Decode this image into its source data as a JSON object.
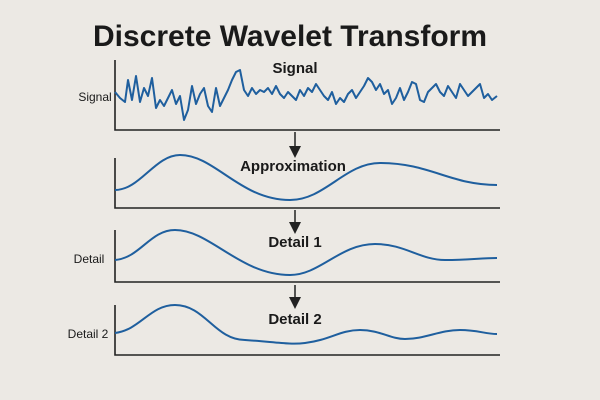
{
  "title": "Discrete Wavelet Transform",
  "panels": [
    {
      "title": "Signal",
      "label": "Signal"
    },
    {
      "title": "Approximation"
    },
    {
      "title": "Detail 1",
      "label": "Detail"
    },
    {
      "title": "Detail 2",
      "label": "Detail 2"
    }
  ]
}
